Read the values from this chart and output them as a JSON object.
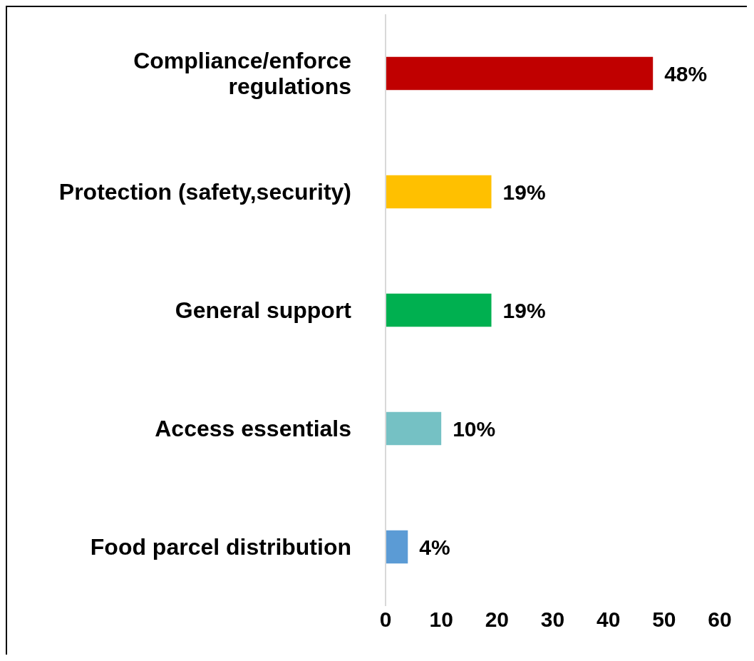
{
  "chart_data": {
    "type": "bar",
    "orientation": "horizontal",
    "categories": [
      "Compliance/enforce regulations",
      "Protection (safety,security)",
      "General support",
      "Access essentials",
      "Food parcel distribution"
    ],
    "values": [
      48,
      19,
      19,
      10,
      4
    ],
    "colors": [
      "#c00000",
      "#ffc000",
      "#00b050",
      "#75c1c4",
      "#5b9bd5"
    ],
    "value_labels": [
      "48%",
      "19%",
      "19%",
      "10%",
      "4%"
    ],
    "xlim": [
      0,
      60
    ],
    "xticks": [
      0,
      10,
      20,
      30,
      40,
      50,
      60
    ]
  }
}
